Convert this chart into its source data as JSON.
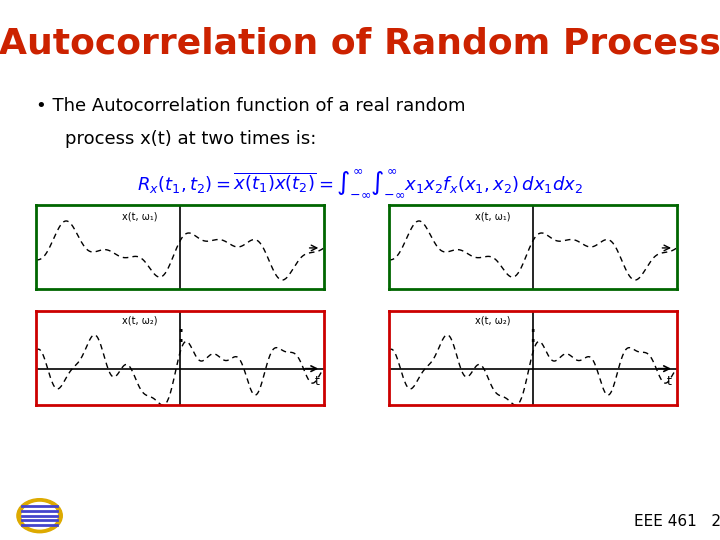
{
  "title": "Autocorrelation of Random Process",
  "title_color": "#cc2200",
  "bg_color": "#f0f0f0",
  "bullet_text": "The Autocorrelation function of a real random\nprocess x(t) at two times is:",
  "formula_text": "$R_x(t_1, t_2) = \\overline{x(t_1)x(t_2)} = \\int_{-\\infty}^{\\infty}\\int_{-\\infty}^{\\infty} x_1 x_2 f_x(x_1, x_2)\\,dx_1 dx_2$",
  "panel1_border": "#006600",
  "panel2_border": "#cc0000",
  "panel3_border": "#006600",
  "panel4_border": "#cc0000",
  "label_top": "x(t, ω₁)",
  "label_bottom": "x(t, ω₂)",
  "axis_label_t": "t"
}
